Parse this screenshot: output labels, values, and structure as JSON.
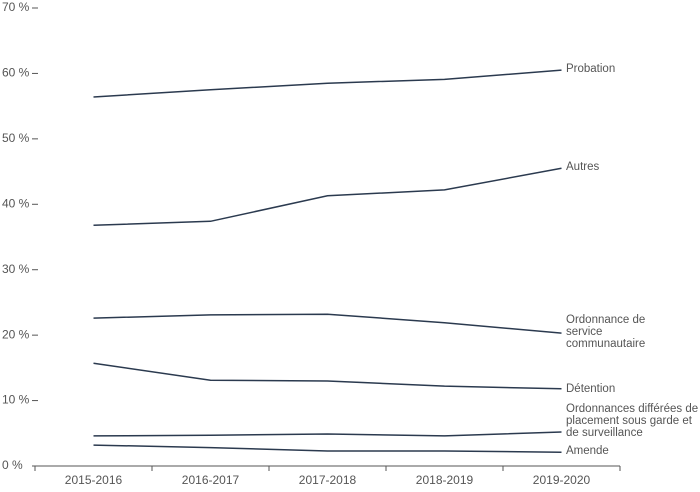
{
  "chart_data": {
    "type": "line",
    "categories": [
      "2015-2016",
      "2016-2017",
      "2017-2018",
      "2018-2019",
      "2019-2020"
    ],
    "series": [
      {
        "name": "Probation",
        "color": "#2b3a4f",
        "values": [
          56.4,
          57.5,
          58.5,
          59.1,
          60.5
        ]
      },
      {
        "name": "Autres",
        "color": "#2b3a4f",
        "values": [
          36.8,
          37.4,
          41.3,
          42.2,
          45.5
        ]
      },
      {
        "name": "Ordonnance de service communautaire",
        "color": "#2b3a4f",
        "values": [
          22.6,
          23.1,
          23.2,
          21.9,
          20.3
        ]
      },
      {
        "name": "Détention",
        "color": "#2b3a4f",
        "values": [
          15.7,
          13.1,
          13.0,
          12.2,
          11.8
        ]
      },
      {
        "name": "Ordonnances différées de placement sous garde et de surveillance",
        "color": "#2b3a4f",
        "values": [
          4.6,
          4.7,
          4.9,
          4.6,
          5.2
        ]
      },
      {
        "name": "Amende",
        "color": "#2b3a4f",
        "values": [
          3.2,
          2.8,
          2.3,
          2.3,
          2.1
        ]
      }
    ],
    "ylim": [
      0,
      70
    ],
    "yticks": [
      {
        "value": 0,
        "label": "0 %"
      },
      {
        "value": 10,
        "label": "10 %"
      },
      {
        "value": 20,
        "label": "20 %"
      },
      {
        "value": 30,
        "label": "30 %"
      },
      {
        "value": 40,
        "label": "40 %"
      },
      {
        "value": 50,
        "label": "50 %"
      },
      {
        "value": 60,
        "label": "60 %"
      },
      {
        "value": 70,
        "label": "70 %"
      }
    ],
    "grid": false
  }
}
